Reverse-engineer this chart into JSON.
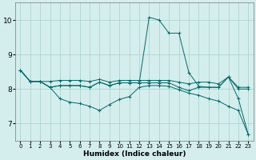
{
  "xlabel": "Humidex (Indice chaleur)",
  "bg_color": "#d4eeed",
  "grid_color": "#aed4d0",
  "line_color": "#006b6b",
  "xlim": [
    -0.5,
    23.5
  ],
  "ylim": [
    6.5,
    10.5
  ],
  "xticks": [
    0,
    1,
    2,
    3,
    4,
    5,
    6,
    7,
    8,
    9,
    10,
    11,
    12,
    13,
    14,
    15,
    16,
    17,
    18,
    19,
    20,
    21,
    22,
    23
  ],
  "yticks": [
    7,
    8,
    9,
    10
  ],
  "line1_x": [
    0,
    1,
    2,
    3,
    4,
    5,
    6,
    7,
    8,
    9,
    10,
    11,
    12,
    13,
    14,
    15,
    16,
    17,
    18,
    19,
    20,
    21,
    22,
    23
  ],
  "line1_y": [
    8.55,
    8.22,
    8.22,
    8.22,
    8.25,
    8.25,
    8.25,
    8.22,
    8.28,
    8.2,
    8.25,
    8.25,
    8.25,
    8.25,
    8.25,
    8.25,
    8.2,
    8.15,
    8.2,
    8.2,
    8.15,
    8.35,
    8.05,
    8.05
  ],
  "line2_x": [
    0,
    1,
    2,
    3,
    4,
    5,
    6,
    7,
    8,
    9,
    10,
    11,
    12,
    13,
    14,
    15,
    16,
    17,
    18,
    19,
    20,
    21,
    22,
    23
  ],
  "line2_y": [
    8.55,
    8.22,
    8.22,
    8.05,
    7.72,
    7.62,
    7.58,
    7.5,
    7.38,
    7.55,
    7.7,
    7.78,
    8.05,
    8.1,
    8.1,
    8.08,
    7.98,
    7.88,
    7.82,
    7.72,
    7.65,
    7.5,
    7.38,
    6.68
  ],
  "line3_x": [
    0,
    1,
    2,
    3,
    4,
    5,
    6,
    7,
    8,
    9,
    10,
    11,
    12,
    13,
    14,
    15,
    16,
    17,
    18,
    19,
    20,
    21,
    22,
    23
  ],
  "line3_y": [
    8.55,
    8.22,
    8.22,
    8.05,
    8.1,
    8.1,
    8.1,
    8.05,
    8.2,
    8.1,
    8.18,
    8.18,
    8.18,
    10.08,
    10.0,
    9.62,
    9.62,
    8.48,
    8.08,
    8.05,
    8.05,
    8.35,
    7.72,
    6.68
  ],
  "line4_x": [
    0,
    1,
    2,
    3,
    4,
    5,
    6,
    7,
    8,
    9,
    10,
    11,
    12,
    13,
    14,
    15,
    16,
    17,
    18,
    19,
    20,
    21,
    22,
    23
  ],
  "line4_y": [
    8.55,
    8.22,
    8.22,
    8.05,
    8.1,
    8.1,
    8.1,
    8.05,
    8.2,
    8.1,
    8.18,
    8.18,
    8.18,
    8.18,
    8.18,
    8.18,
    8.05,
    7.95,
    8.05,
    8.05,
    8.05,
    8.35,
    8.0,
    8.0
  ]
}
